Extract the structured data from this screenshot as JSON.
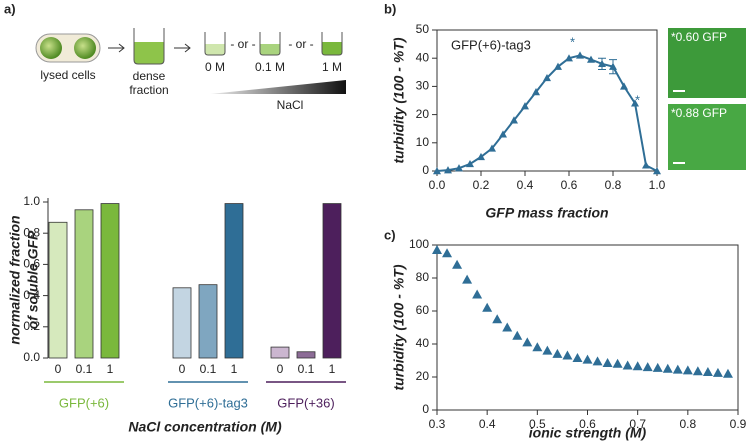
{
  "panel_labels": [
    "a)",
    "b)",
    "c)"
  ],
  "schematic": {
    "cells": "lysed cells",
    "dense": [
      "dense",
      "fraction"
    ],
    "concentrations": [
      "0 M",
      "0.1 M",
      "1 M"
    ],
    "or": [
      "- or -",
      "- or -"
    ],
    "salt": "NaCl"
  },
  "chart_data": [
    {
      "type": "bar",
      "ylabel": [
        "normalized fraction",
        "of soluble GFP"
      ],
      "xlabel": "NaCl concentration (M)",
      "categories": [
        "0",
        "0.1",
        "1"
      ],
      "series": [
        {
          "name": "GFP(+6)",
          "color": "#7ab83c",
          "colors": [
            "#d6e9bd",
            "#a9d37e",
            "#7ab83c"
          ],
          "values": [
            0.87,
            0.95,
            0.99
          ]
        },
        {
          "name": "GFP(+6)-tag3",
          "color": "#2f6e96",
          "colors": [
            "#c3d5e2",
            "#7fa6c0",
            "#2f6e96"
          ],
          "values": [
            0.45,
            0.47,
            0.99
          ]
        },
        {
          "name": "GFP(+36)",
          "color": "#4d1f5c",
          "colors": [
            "#cbb6d0",
            "#8c6c96",
            "#4d1f5c"
          ],
          "values": [
            0.07,
            0.04,
            0.99
          ]
        }
      ],
      "ylim": [
        0,
        1
      ],
      "yticks": [
        {
          "value": 0,
          "label": "0.0"
        },
        0.2,
        0.4,
        0.6,
        0.8,
        {
          "value": 1,
          "label": "1.0"
        }
      ]
    },
    {
      "type": "line",
      "annotation": "GFP(+6)-tag3",
      "stars": [
        "*",
        "*"
      ],
      "insets": [
        "*0.60 GFP",
        "*0.88 GFP"
      ],
      "xlabel": "GFP mass fraction",
      "ylabel": "turbidity (100 - %T)",
      "color": "#2f6e96",
      "x": [
        0,
        0.05,
        0.1,
        0.15,
        0.2,
        0.25,
        0.3,
        0.35,
        0.4,
        0.45,
        0.5,
        0.55,
        0.6,
        0.65,
        0.7,
        0.75,
        0.8,
        0.85,
        0.9,
        0.95,
        1.0
      ],
      "values": [
        0,
        0.3,
        1,
        2.5,
        5,
        8,
        13,
        18,
        23,
        28,
        33,
        37,
        40,
        41,
        39.5,
        38,
        37,
        30,
        24,
        2,
        0
      ],
      "errors": [
        null,
        null,
        null,
        null,
        null,
        null,
        null,
        null,
        null,
        null,
        null,
        null,
        null,
        null,
        null,
        2,
        2.5,
        null,
        null,
        null,
        null
      ],
      "xlim": [
        0,
        1
      ],
      "xticks": [
        {
          "value": 0,
          "label": "0.0"
        },
        0.2,
        0.4,
        0.6,
        0.8,
        {
          "value": 1,
          "label": "1.0"
        }
      ],
      "ylim": [
        0,
        50
      ],
      "yticks": [
        0,
        10,
        20,
        30,
        40,
        50
      ]
    },
    {
      "type": "scatter",
      "xlabel": "ionic strength (M)",
      "ylabel": "turbidity (100 - %T)",
      "color": "#2f6e96",
      "x": [
        0.3,
        0.32,
        0.34,
        0.36,
        0.38,
        0.4,
        0.42,
        0.44,
        0.46,
        0.48,
        0.5,
        0.52,
        0.54,
        0.56,
        0.58,
        0.6,
        0.62,
        0.64,
        0.66,
        0.68,
        0.7,
        0.72,
        0.74,
        0.76,
        0.78,
        0.8,
        0.82,
        0.84,
        0.86,
        0.88
      ],
      "values": [
        97,
        95,
        88,
        79,
        70,
        62,
        55,
        50,
        45,
        41,
        38,
        36,
        34,
        33,
        31.5,
        30.5,
        29.5,
        28.5,
        28,
        27,
        26.5,
        26,
        25.5,
        25,
        24.5,
        24,
        23.5,
        23,
        22.5,
        22
      ],
      "xlim": [
        0.3,
        0.9
      ],
      "xticks": [
        0.3,
        0.4,
        0.5,
        0.6,
        0.7,
        0.8,
        0.9
      ],
      "ylim": [
        0,
        100
      ],
      "yticks": [
        0,
        20,
        40,
        60,
        80,
        100
      ]
    }
  ]
}
